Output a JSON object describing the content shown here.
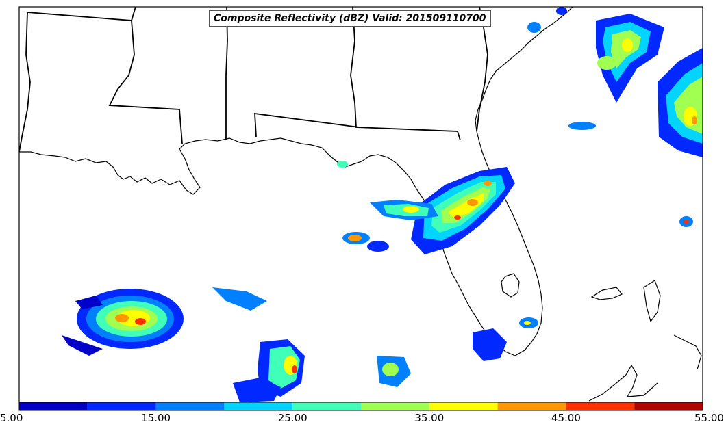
{
  "map": {
    "title": "Composite Reflectivity (dBZ) Valid: 201509110700",
    "field": "Composite Reflectivity",
    "units": "dBZ",
    "valid_time": "201509110700"
  },
  "colorbar": {
    "min": 5.0,
    "max": 55.0,
    "tick_labels": [
      "5.00",
      "15.00",
      "25.00",
      "35.00",
      "45.00",
      "55.00"
    ],
    "bins": [
      {
        "from": 5,
        "to": 10,
        "color": "#0000c8"
      },
      {
        "from": 10,
        "to": 15,
        "color": "#0028ff"
      },
      {
        "from": 15,
        "to": 20,
        "color": "#0080ff"
      },
      {
        "from": 20,
        "to": 25,
        "color": "#00d4ff"
      },
      {
        "from": 25,
        "to": 30,
        "color": "#40ffb8"
      },
      {
        "from": 30,
        "to": 35,
        "color": "#a0ff50"
      },
      {
        "from": 35,
        "to": 40,
        "color": "#ffff00"
      },
      {
        "from": 40,
        "to": 45,
        "color": "#ff9800"
      },
      {
        "from": 45,
        "to": 50,
        "color": "#ff3000"
      },
      {
        "from": 50,
        "to": 55,
        "color": "#b00000"
      }
    ]
  }
}
